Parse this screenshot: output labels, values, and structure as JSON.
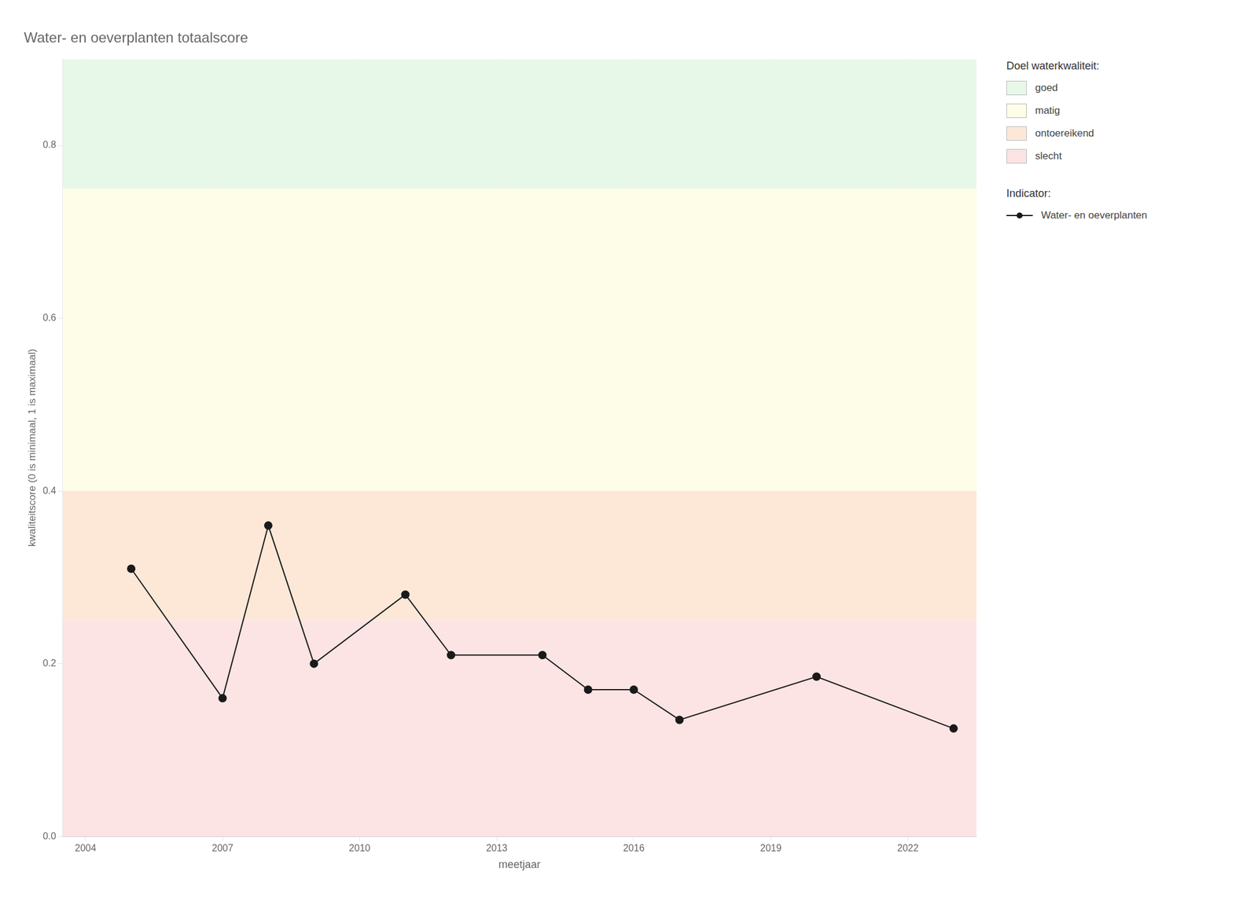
{
  "chart_data": {
    "type": "line",
    "title": "Water- en oeverplanten totaalscore",
    "xlabel": "meetjaar",
    "ylabel": "kwaliteitscore (0 is minimaal, 1 is maximaal)",
    "x": [
      2005,
      2007,
      2008,
      2009,
      2011,
      2012,
      2014,
      2015,
      2016,
      2017,
      2020,
      2023
    ],
    "series": [
      {
        "name": "Water- en oeverplanten",
        "color": "#1a1a1a",
        "marker": "circle",
        "line_style": "solid",
        "values": [
          0.31,
          0.16,
          0.36,
          0.2,
          0.28,
          0.21,
          0.21,
          0.17,
          0.17,
          0.135,
          0.185,
          0.125
        ]
      }
    ],
    "xlim": [
      2003.5,
      2023.5
    ],
    "xticks": [
      2004,
      2007,
      2010,
      2013,
      2016,
      2019,
      2022
    ],
    "ylim": [
      0.0,
      0.9
    ],
    "yticks": [
      {
        "value": 0,
        "label": "0.0"
      },
      0.2,
      0.4,
      0.6,
      0.8
    ],
    "grid": true,
    "legend": "right",
    "zones_title": "Doel waterkwaliteit:",
    "zones": [
      {
        "label": "goed",
        "ymin": 0.75,
        "ymax": 0.9,
        "color": "#e8f8e8"
      },
      {
        "label": "matig",
        "ymin": 0.4,
        "ymax": 0.75,
        "color": "#fdfde8"
      },
      {
        "label": "ontoereikend",
        "ymin": 0.25,
        "ymax": 0.4,
        "color": "#fde8d8"
      },
      {
        "label": "slecht",
        "ymin": 0.0,
        "ymax": 0.25,
        "color": "#fce4e4"
      }
    ],
    "legend_title": "Indicator:"
  }
}
